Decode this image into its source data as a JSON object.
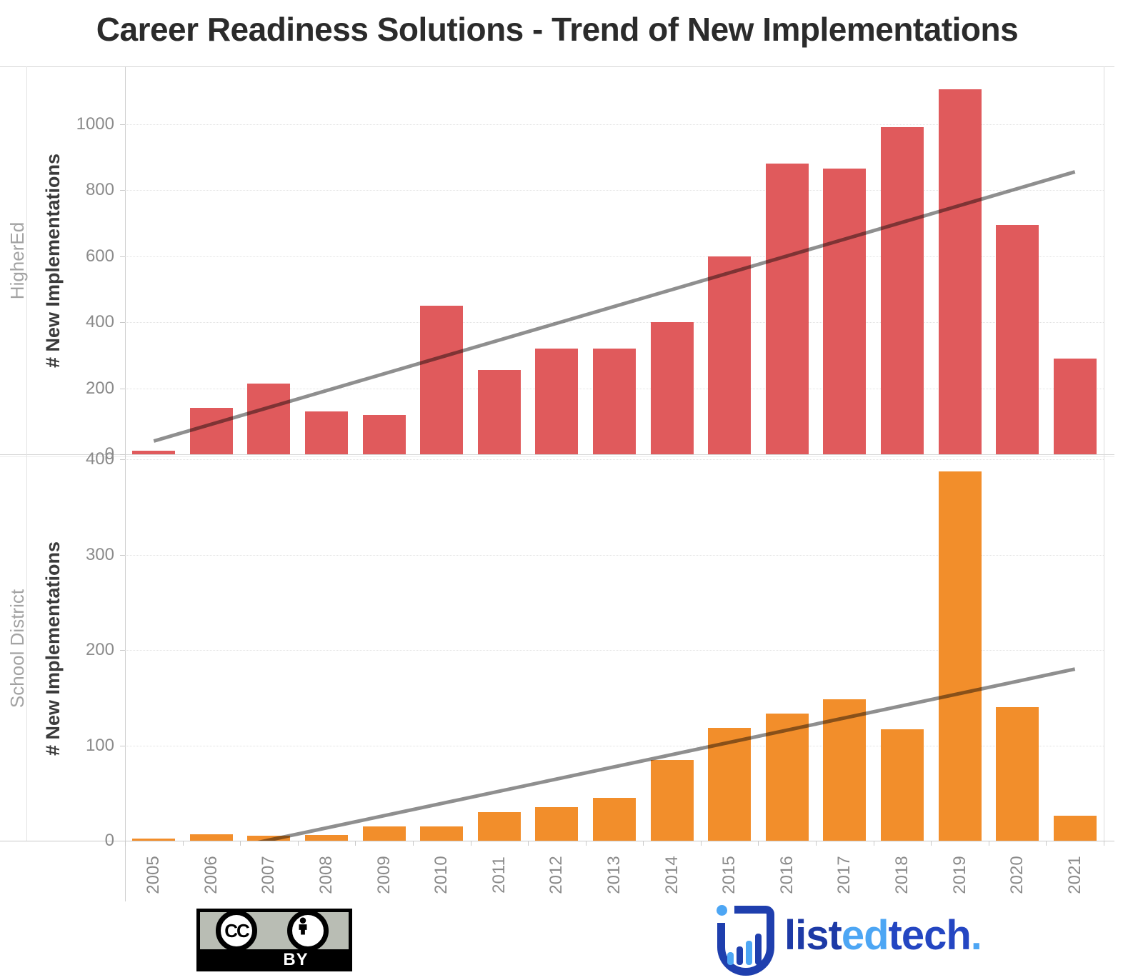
{
  "title": "Career Readiness Solutions - Trend of New Implementations",
  "chart_data": [
    {
      "type": "bar",
      "panel_label": "HigherEd",
      "ylabel": "# New Implementations",
      "categories": [
        "2005",
        "2006",
        "2007",
        "2008",
        "2009",
        "2010",
        "2011",
        "2012",
        "2013",
        "2014",
        "2015",
        "2016",
        "2017",
        "2018",
        "2019",
        "2020",
        "2021"
      ],
      "values": [
        10,
        140,
        215,
        130,
        120,
        450,
        255,
        320,
        320,
        400,
        600,
        880,
        865,
        990,
        1105,
        695,
        290
      ],
      "yticks": [
        0,
        200,
        400,
        600,
        800,
        1000
      ],
      "ylim": [
        0,
        1175
      ],
      "grid": "dotted",
      "bar_color": "#e05a5c",
      "trend_line": {
        "start_year": "2005",
        "start_value": 40,
        "end_year": "2021",
        "end_value": 855,
        "color": "#8f8f8f"
      }
    },
    {
      "type": "bar",
      "panel_label": "School District",
      "ylabel": "# New Implementations",
      "categories": [
        "2005",
        "2006",
        "2007",
        "2008",
        "2009",
        "2010",
        "2011",
        "2012",
        "2013",
        "2014",
        "2015",
        "2016",
        "2017",
        "2018",
        "2019",
        "2020",
        "2021"
      ],
      "values": [
        2,
        7,
        5,
        6,
        15,
        15,
        30,
        35,
        45,
        85,
        118,
        133,
        148,
        117,
        387,
        140,
        26
      ],
      "yticks": [
        0,
        100,
        200,
        300,
        400
      ],
      "ylim": [
        0,
        403
      ],
      "grid": "dotted",
      "bar_color": "#f28e2b",
      "trend_line": {
        "start_year": "2005",
        "start_value": -25,
        "end_year": "2021",
        "end_value": 180,
        "color": "#8f8f8f"
      }
    }
  ],
  "footer": {
    "cc_badge": {
      "cc_text": "CC",
      "label": "BY",
      "icon": "cc-by-license"
    },
    "logo": {
      "name": "listedtech",
      "parts": [
        {
          "text": "list",
          "color": "#1d3aa6"
        },
        {
          "text": "ed",
          "color": "#4da6f4"
        },
        {
          "text": "tech",
          "color": "#2446c2"
        },
        {
          "text": ".",
          "color": "#4da6f4"
        }
      ],
      "icon_bar_colors": [
        "#4da6f4",
        "#1f3fae",
        "#4da6f4",
        "#1f3fae"
      ],
      "icon_outline_color": "#1f3fae"
    }
  },
  "colors": {
    "title_text": "#2b2b2b",
    "tick_text": "#8b8b8b",
    "row_label_text": "#a3a3a3",
    "axis_title_text": "#3b3b3b",
    "gridline": "#e2e2e2",
    "panel_border": "#d6d6d6"
  }
}
